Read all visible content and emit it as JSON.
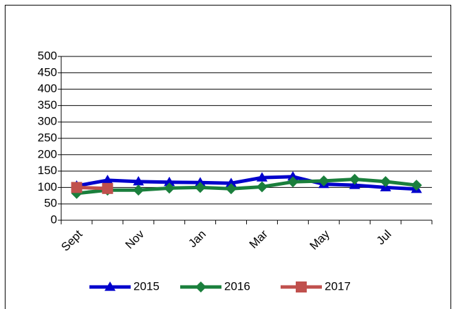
{
  "chart_data": {
    "type": "line",
    "categories": [
      "Sept",
      null,
      "Nov",
      null,
      "Jan",
      null,
      "Mar",
      null,
      "May",
      null,
      "Jul",
      null
    ],
    "series": [
      {
        "name": "2015",
        "color": "#0000cc",
        "marker": "triangle",
        "values": [
          105,
          122,
          118,
          116,
          115,
          113,
          130,
          133,
          110,
          107,
          100,
          95
        ]
      },
      {
        "name": "2016",
        "color": "#1a7f3c",
        "marker": "diamond",
        "values": [
          82,
          92,
          92,
          98,
          100,
          96,
          102,
          117,
          120,
          125,
          118,
          107
        ]
      },
      {
        "name": "2017",
        "color": "#c0504d",
        "marker": "square",
        "values": [
          100,
          97,
          null,
          null,
          null,
          null,
          null,
          null,
          null,
          null,
          null,
          null
        ]
      }
    ],
    "ylim": [
      0,
      500
    ],
    "yticks": [
      0,
      50,
      100,
      150,
      200,
      250,
      300,
      350,
      400,
      450,
      500
    ],
    "grid": true,
    "legend": "bottom"
  }
}
